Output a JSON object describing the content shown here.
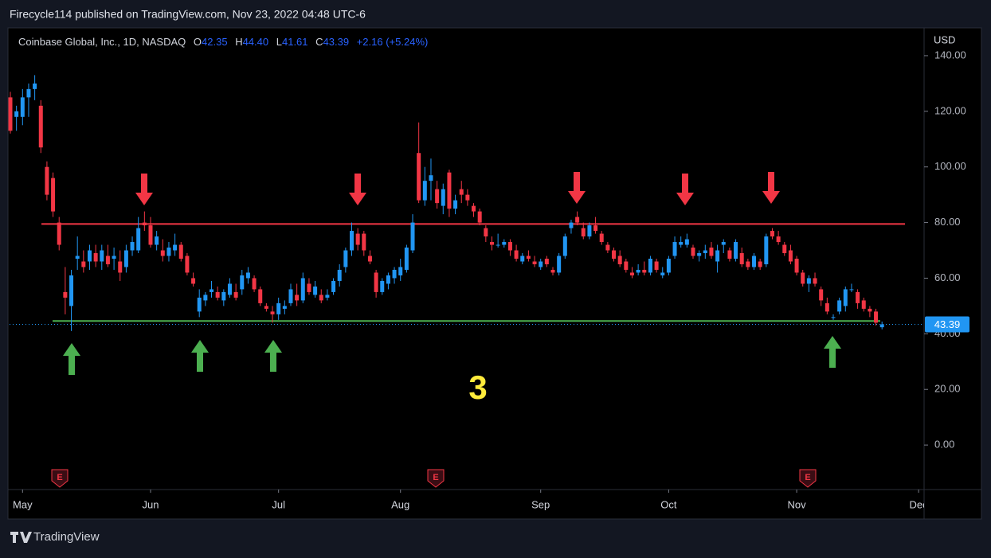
{
  "header": {
    "published": "Firecycle114 published on TradingView.com, Nov 23, 2022 04:48 UTC-6"
  },
  "footer": {
    "brand": "TradingView"
  },
  "chart_data": {
    "type": "candlestick",
    "symbol": "Coinbase Global, Inc., 1D, NASDAQ",
    "ohlc_labels": [
      "O",
      "H",
      "L",
      "C"
    ],
    "ohlc_values": [
      "42.35",
      "44.40",
      "41.61",
      "43.39"
    ],
    "change": "+2.16 (+5.24%)",
    "currency": "USD",
    "annotation": "3",
    "earnings_marker": "E",
    "up_color": "#2196f3",
    "down_color": "#f23645",
    "levels": [
      79.5,
      44.6
    ],
    "level_colors": [
      "#f23645",
      "#4caf50"
    ],
    "xlim": [
      -1.7,
      149.9
    ],
    "xticks": [
      {
        "value": 2,
        "label": "May"
      },
      {
        "value": 23,
        "label": "Jun"
      },
      {
        "value": 44,
        "label": "Jul"
      },
      {
        "value": 64,
        "label": "Aug"
      },
      {
        "value": 87,
        "label": "Sep"
      },
      {
        "value": 108,
        "label": "Oct"
      },
      {
        "value": 129,
        "label": "Nov"
      },
      {
        "value": 149,
        "label": "Dec"
      }
    ],
    "ylim": [
      -16,
      150
    ],
    "yticks": [
      {
        "value": 0,
        "label": "0.00"
      },
      {
        "value": 20,
        "label": "20.00"
      },
      {
        "value": 40,
        "label": "40.00"
      },
      {
        "value": 60,
        "label": "60.00"
      },
      {
        "value": 80,
        "label": "80.00"
      },
      {
        "value": 100,
        "label": "100.00"
      },
      {
        "value": 120,
        "label": "120.00"
      },
      {
        "value": 140,
        "label": "140.00"
      }
    ],
    "candles": [
      [
        125,
        127,
        112,
        113
      ],
      [
        118,
        122,
        113,
        120
      ],
      [
        118,
        128,
        115,
        125
      ],
      [
        125,
        130,
        118,
        128
      ],
      [
        128,
        133,
        124,
        130
      ],
      [
        122,
        124,
        105,
        107
      ],
      [
        100,
        102,
        88,
        90
      ],
      [
        96,
        98,
        82,
        84
      ],
      [
        80,
        82,
        70,
        72
      ],
      [
        55,
        64,
        47,
        53
      ],
      [
        50,
        63,
        41,
        61
      ],
      [
        67,
        75,
        63,
        68
      ],
      [
        66,
        70,
        62,
        64
      ],
      [
        66,
        72,
        63,
        70
      ],
      [
        69,
        72,
        64,
        66
      ],
      [
        66,
        72,
        63,
        70
      ],
      [
        68,
        72,
        64,
        65
      ],
      [
        67,
        71,
        63,
        68
      ],
      [
        66,
        70,
        59,
        62
      ],
      [
        64,
        72,
        62,
        70
      ],
      [
        70,
        75,
        68,
        73
      ],
      [
        70,
        82,
        69,
        78
      ],
      [
        80,
        84,
        77,
        79
      ],
      [
        79,
        82,
        71,
        72
      ],
      [
        72,
        77,
        70,
        75
      ],
      [
        70,
        74,
        66,
        68
      ],
      [
        68,
        73,
        66,
        71
      ],
      [
        70,
        76,
        68,
        72
      ],
      [
        72,
        73,
        66,
        67
      ],
      [
        68,
        69,
        61,
        62
      ],
      [
        60,
        62,
        57,
        58
      ],
      [
        48,
        56,
        46,
        53
      ],
      [
        52,
        55,
        50,
        54
      ],
      [
        55,
        59,
        53,
        56
      ],
      [
        55,
        57,
        52,
        53
      ],
      [
        52,
        56,
        50,
        55
      ],
      [
        54,
        60,
        53,
        58
      ],
      [
        55,
        58,
        52,
        53
      ],
      [
        56,
        63,
        54,
        61
      ],
      [
        60,
        64,
        58,
        62
      ],
      [
        60,
        61,
        55,
        56
      ],
      [
        56,
        57,
        50,
        51
      ],
      [
        50,
        51,
        48,
        49
      ],
      [
        48,
        50,
        44,
        47
      ],
      [
        47,
        53,
        45,
        51
      ],
      [
        49,
        52,
        47,
        50
      ],
      [
        51,
        58,
        50,
        56
      ],
      [
        54,
        58,
        50,
        52
      ],
      [
        52,
        62,
        51,
        60
      ],
      [
        58,
        60,
        54,
        55
      ],
      [
        54,
        59,
        53,
        57
      ],
      [
        54,
        56,
        51,
        52
      ],
      [
        53,
        56,
        52,
        54
      ],
      [
        55,
        60,
        54,
        59
      ],
      [
        59,
        65,
        57,
        63
      ],
      [
        64,
        71,
        62,
        70
      ],
      [
        70,
        80,
        68,
        77
      ],
      [
        76,
        78,
        70,
        72
      ],
      [
        76,
        77,
        68,
        70
      ],
      [
        68,
        70,
        65,
        66
      ],
      [
        62,
        63,
        53,
        55
      ],
      [
        55,
        60,
        54,
        59
      ],
      [
        58,
        62,
        56,
        61
      ],
      [
        60,
        64,
        58,
        63
      ],
      [
        61,
        67,
        59,
        64
      ],
      [
        63,
        72,
        62,
        71
      ],
      [
        70,
        83,
        69,
        80
      ],
      [
        105,
        116,
        87,
        88
      ],
      [
        88,
        100,
        86,
        95
      ],
      [
        95,
        103,
        88,
        97
      ],
      [
        92,
        95,
        85,
        87
      ],
      [
        86,
        94,
        83,
        92
      ],
      [
        98,
        99,
        82,
        85
      ],
      [
        85,
        90,
        83,
        88
      ],
      [
        92,
        95,
        87,
        90
      ],
      [
        90,
        92,
        86,
        88
      ],
      [
        86,
        87,
        82,
        84
      ],
      [
        84,
        85,
        79,
        80
      ],
      [
        78,
        79,
        73,
        75
      ],
      [
        73,
        75,
        70,
        72
      ],
      [
        72,
        76,
        71,
        72
      ],
      [
        72,
        74,
        71,
        73
      ],
      [
        73,
        74,
        68,
        70
      ],
      [
        70,
        72,
        66,
        67
      ],
      [
        66,
        69,
        65,
        68
      ],
      [
        68,
        70,
        66,
        67
      ],
      [
        66,
        68,
        64,
        65
      ],
      [
        64,
        67,
        63,
        66
      ],
      [
        67,
        68,
        64,
        65
      ],
      [
        63,
        64,
        61,
        62
      ],
      [
        62,
        69,
        61,
        68
      ],
      [
        68,
        76,
        67,
        75
      ],
      [
        78,
        81,
        76,
        80
      ],
      [
        82,
        84,
        79,
        80
      ],
      [
        78,
        80,
        74,
        75
      ],
      [
        75,
        80,
        74,
        79
      ],
      [
        79,
        82,
        76,
        77
      ],
      [
        76,
        77,
        72,
        73
      ],
      [
        72,
        73,
        69,
        70
      ],
      [
        70,
        71,
        66,
        67
      ],
      [
        68,
        70,
        64,
        65
      ],
      [
        66,
        67,
        62,
        63
      ],
      [
        62,
        64,
        60,
        61
      ],
      [
        62,
        65,
        61,
        63
      ],
      [
        63,
        66,
        61,
        62
      ],
      [
        62,
        68,
        61,
        67
      ],
      [
        66,
        67,
        62,
        63
      ],
      [
        61,
        64,
        60,
        62
      ],
      [
        62,
        68,
        61,
        67
      ],
      [
        68,
        75,
        67,
        73
      ],
      [
        72,
        75,
        71,
        73
      ],
      [
        72,
        76,
        71,
        74
      ],
      [
        71,
        72,
        67,
        68
      ],
      [
        68,
        70,
        66,
        69
      ],
      [
        69,
        72,
        67,
        70
      ],
      [
        71,
        73,
        67,
        68
      ],
      [
        66,
        72,
        62,
        70
      ],
      [
        72,
        74,
        69,
        73
      ],
      [
        70,
        71,
        66,
        67
      ],
      [
        67,
        74,
        66,
        73
      ],
      [
        69,
        71,
        64,
        65
      ],
      [
        66,
        67,
        63,
        64
      ],
      [
        64,
        69,
        63,
        68
      ],
      [
        66,
        67,
        63,
        64
      ],
      [
        65,
        76,
        64,
        75
      ],
      [
        77,
        78,
        74,
        75
      ],
      [
        75,
        77,
        72,
        73
      ],
      [
        72,
        73,
        68,
        69
      ],
      [
        70,
        72,
        65,
        66
      ],
      [
        67,
        68,
        61,
        62
      ],
      [
        62,
        63,
        57,
        58
      ],
      [
        58,
        61,
        55,
        60
      ],
      [
        60,
        62,
        57,
        58
      ],
      [
        56,
        57,
        50,
        52
      ],
      [
        51,
        53,
        47,
        48
      ],
      [
        46,
        47,
        45,
        46
      ],
      [
        48,
        53,
        47,
        52
      ],
      [
        50,
        57,
        48,
        56
      ],
      [
        56,
        58,
        55,
        56
      ],
      [
        55,
        56,
        49,
        51
      ],
      [
        52,
        53,
        48,
        49
      ],
      [
        49,
        50,
        46,
        48
      ],
      [
        48,
        49,
        43,
        44
      ],
      [
        42.35,
        44.4,
        41.61,
        43.39
      ]
    ]
  }
}
